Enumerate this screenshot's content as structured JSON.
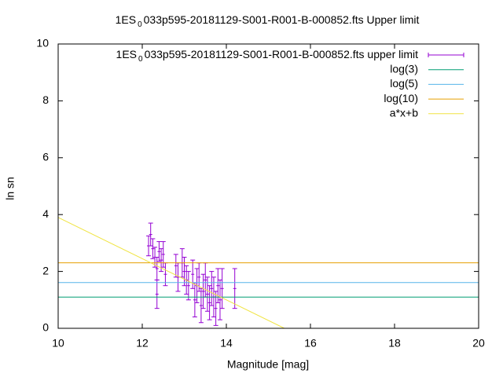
{
  "chart_data": {
    "type": "scatter",
    "title": {
      "main": "1ES",
      "sub": "0",
      "rest": "033p595-20181129-S001-R001-B-000852.fts Upper limit"
    },
    "x_label": "Magnitude [mag]",
    "y_label": "ln sn",
    "xlim": [
      10,
      20
    ],
    "xticks": [
      10,
      12,
      14,
      16,
      18,
      20
    ],
    "ylim": [
      0,
      10
    ],
    "yticks": [
      0,
      2,
      4,
      6,
      8,
      10
    ],
    "legend": "top-right",
    "series": [
      {
        "type": "errorbar",
        "name": {
          "main": "1ES",
          "sub": "0",
          "rest": "033p595-20181129-S001-R001-B-000852.fts upper limit"
        },
        "color": "#9400d3",
        "x": [
          12.15,
          12.2,
          12.25,
          12.3,
          12.35,
          12.35,
          12.4,
          12.45,
          12.5,
          12.55,
          12.8,
          12.85,
          12.95,
          13.0,
          13.05,
          13.1,
          13.2,
          13.25,
          13.3,
          13.35,
          13.4,
          13.45,
          13.5,
          13.55,
          13.6,
          13.65,
          13.7,
          13.75,
          13.8,
          13.85,
          13.9,
          14.2
        ],
        "values": [
          2.9,
          3.3,
          2.8,
          2.5,
          2.1,
          1.2,
          2.7,
          2.4,
          2.6,
          1.9,
          2.2,
          1.8,
          2.3,
          2.0,
          1.7,
          1.5,
          1.9,
          1.0,
          1.5,
          1.8,
          0.8,
          1.3,
          1.7,
          1.2,
          0.9,
          1.4,
          1.1,
          0.7,
          1.5,
          1.0,
          1.4,
          1.4
        ],
        "errors": [
          0.35,
          0.4,
          0.35,
          0.35,
          0.4,
          0.5,
          0.35,
          0.4,
          0.45,
          0.4,
          0.4,
          0.5,
          0.5,
          0.5,
          0.5,
          0.5,
          0.5,
          0.6,
          0.6,
          0.5,
          0.6,
          0.6,
          0.6,
          0.6,
          0.6,
          0.6,
          0.7,
          0.6,
          0.6,
          0.7,
          0.7,
          0.7
        ]
      },
      {
        "type": "hline",
        "name": "log(3)",
        "color": "#009e73",
        "value": 1.0986
      },
      {
        "type": "hline",
        "name": "log(5)",
        "color": "#56b4e9",
        "value": 1.6094
      },
      {
        "type": "hline",
        "name": "log(10)",
        "color": "#e69f00",
        "value": 2.3026
      },
      {
        "type": "line",
        "name": "a*x+b",
        "color": "#f0e442",
        "x": [
          10,
          15.38
        ],
        "values": [
          3.9,
          0
        ]
      }
    ]
  }
}
